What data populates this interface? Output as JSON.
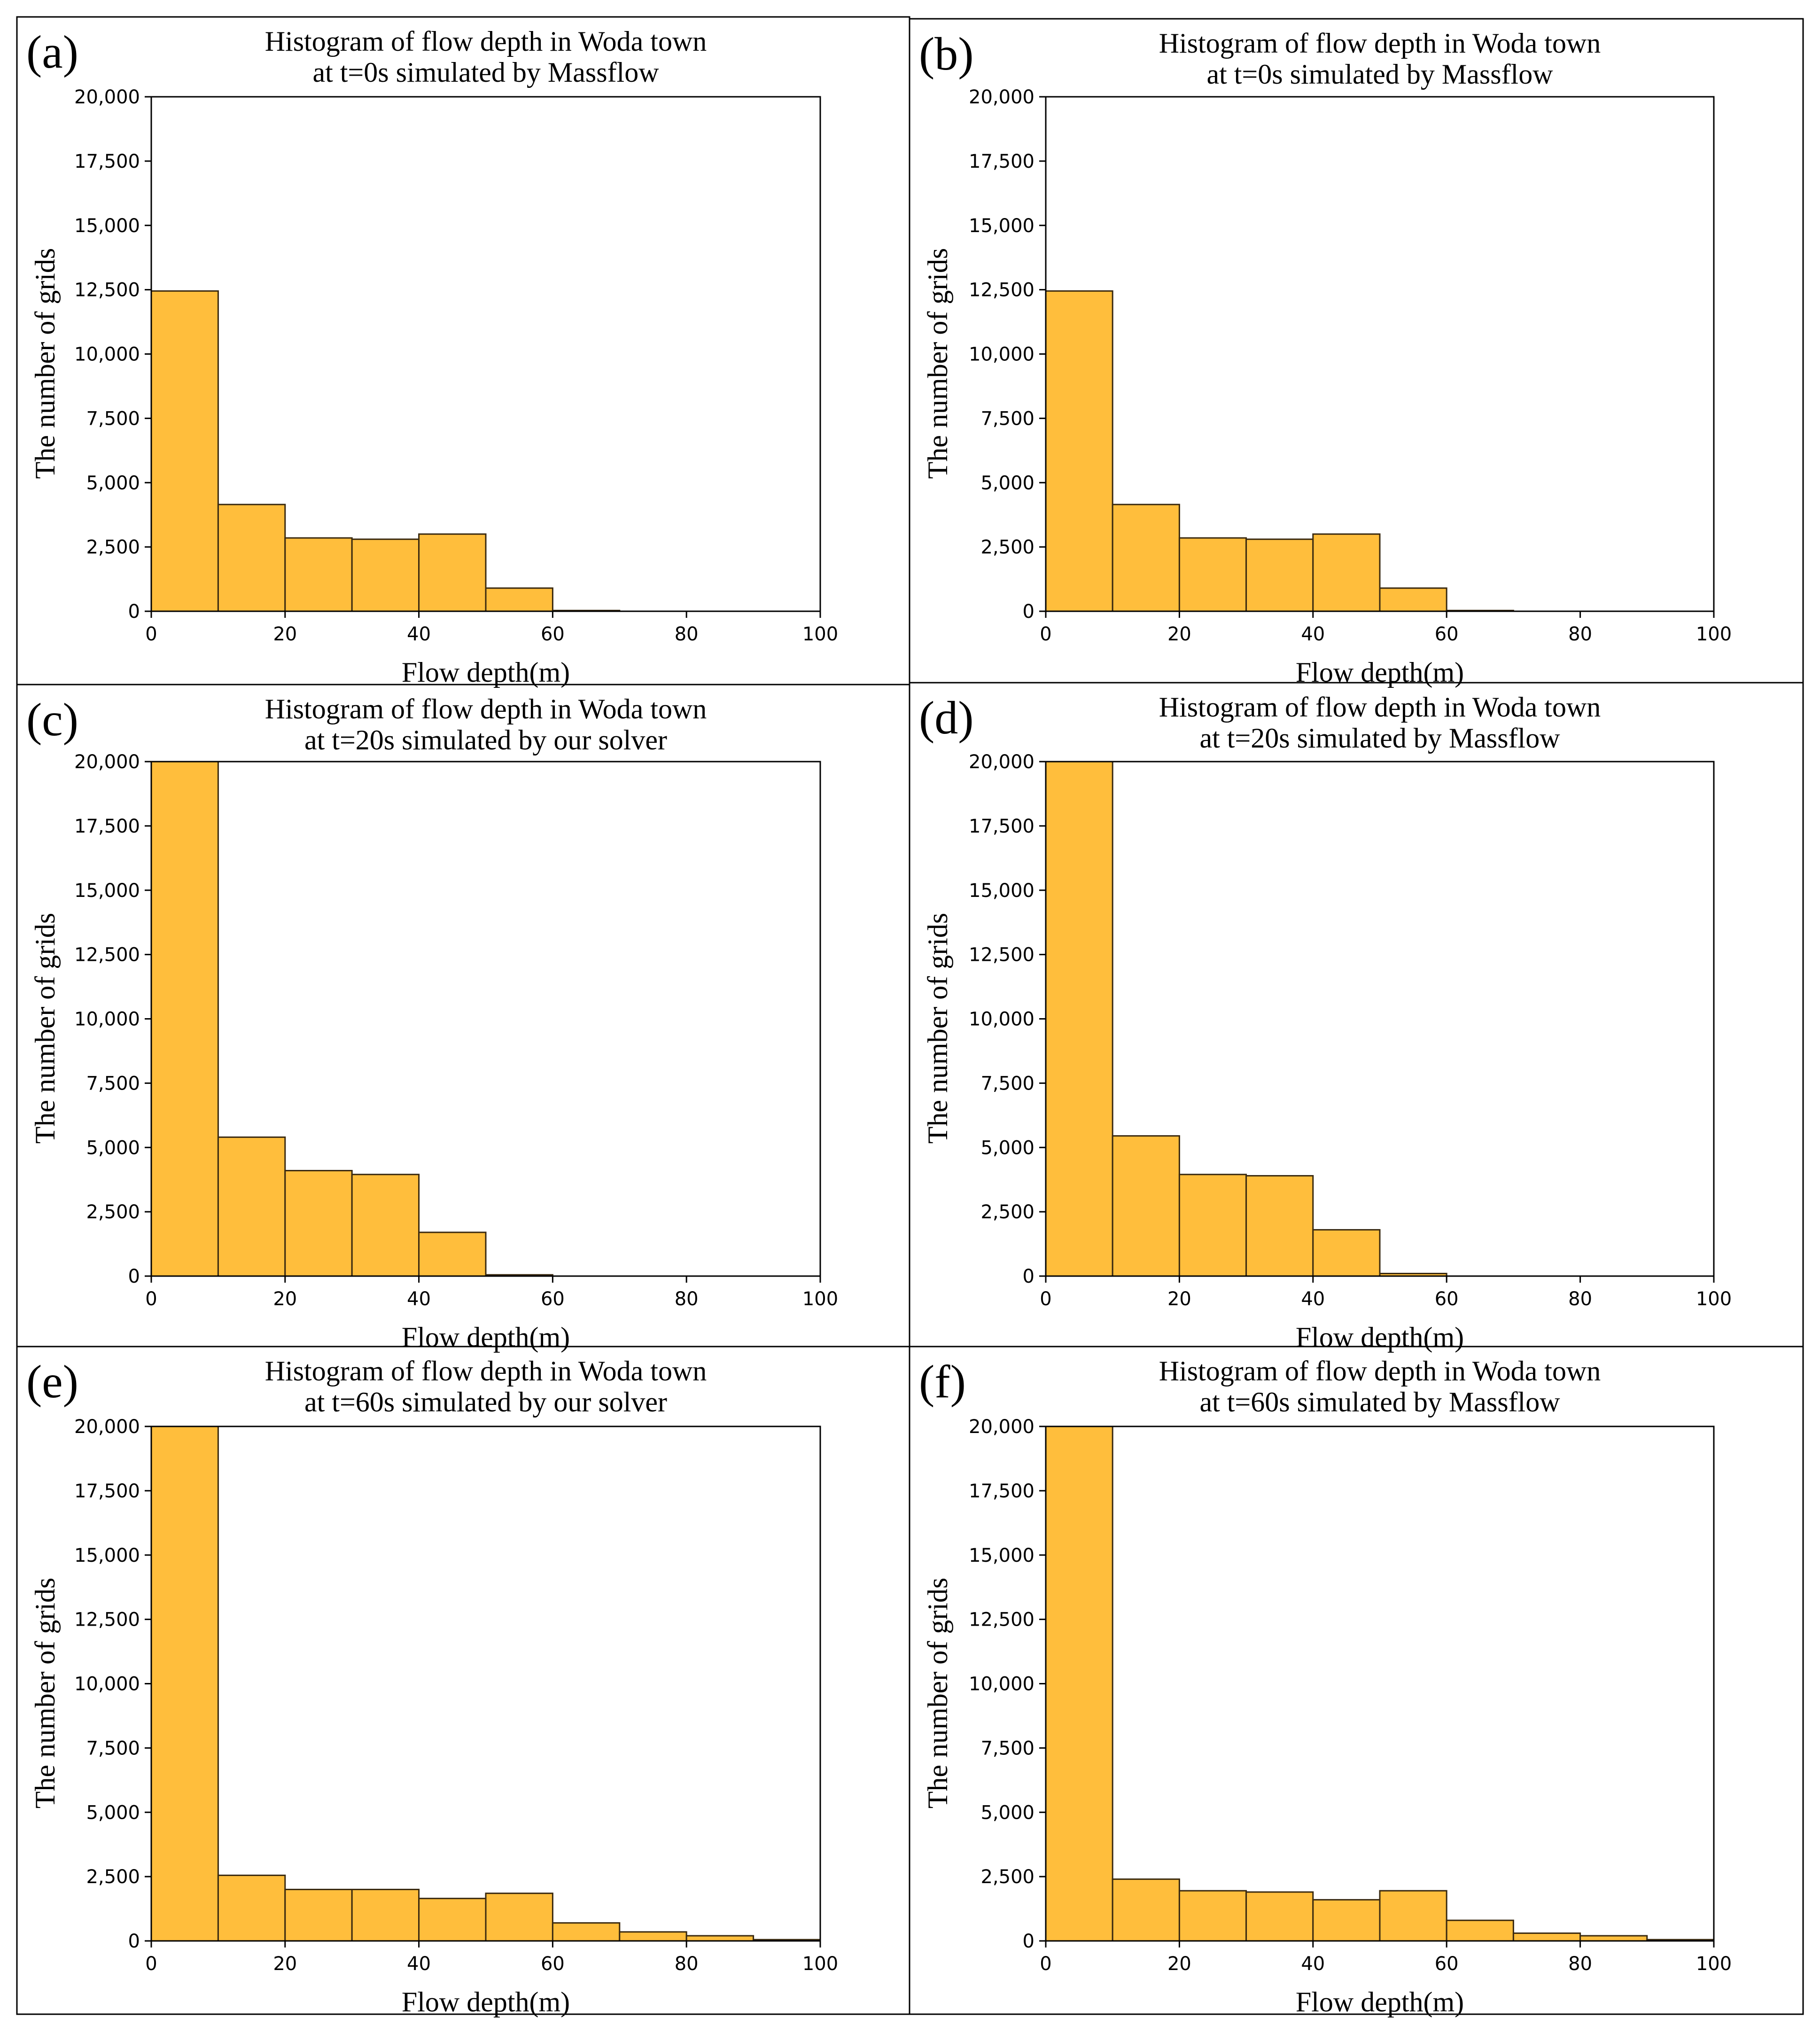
{
  "chart_data": [
    {
      "type": "bar",
      "panel_label": "(a)",
      "title": [
        "Histogram of flow depth in Woda town",
        "at t=0s simulated by Massflow"
      ],
      "xlabel": "Flow depth(m)",
      "ylabel": "The number of grids",
      "bin_edges": [
        0,
        10,
        20,
        30,
        40,
        50,
        60,
        70,
        80,
        90,
        100
      ],
      "values": [
        12450,
        4150,
        2850,
        2800,
        3000,
        900,
        30,
        0,
        0,
        0
      ],
      "xlim": [
        0,
        100
      ],
      "ylim": [
        0,
        20000
      ],
      "xticks": [
        "0",
        "20",
        "40",
        "60",
        "80",
        "100"
      ],
      "yticks": [
        "0",
        "2,500",
        "5,000",
        "7,500",
        "10,000",
        "12,500",
        "15,000",
        "17,500",
        "20,000"
      ],
      "bar_color": "#FFBE3C",
      "edge_color": "#3a2a10",
      "grid": false
    },
    {
      "type": "bar",
      "panel_label": "(b)",
      "title": [
        "Histogram of flow depth in Woda town",
        "at t=0s simulated by Massflow"
      ],
      "xlabel": "Flow depth(m)",
      "ylabel": "The number of grids",
      "bin_edges": [
        0,
        10,
        20,
        30,
        40,
        50,
        60,
        70,
        80,
        90,
        100
      ],
      "values": [
        12450,
        4150,
        2850,
        2800,
        3000,
        900,
        30,
        0,
        0,
        0
      ],
      "xlim": [
        0,
        100
      ],
      "ylim": [
        0,
        20000
      ],
      "xticks": [
        "0",
        "20",
        "40",
        "60",
        "80",
        "100"
      ],
      "yticks": [
        "0",
        "2,500",
        "5,000",
        "7,500",
        "10,000",
        "12,500",
        "15,000",
        "17,500",
        "20,000"
      ],
      "bar_color": "#FFBE3C",
      "edge_color": "#3a2a10",
      "grid": false
    },
    {
      "type": "bar",
      "panel_label": "(c)",
      "title": [
        "Histogram of flow depth in Woda town",
        "at t=20s simulated by our solver"
      ],
      "xlabel": "Flow depth(m)",
      "ylabel": "The number of grids",
      "bin_edges": [
        0,
        10,
        20,
        30,
        40,
        50,
        60,
        70,
        80,
        90,
        100
      ],
      "values": [
        20000,
        5400,
        4100,
        3950,
        1700,
        50,
        0,
        0,
        0,
        0
      ],
      "xlim": [
        0,
        100
      ],
      "ylim": [
        0,
        20000
      ],
      "xticks": [
        "0",
        "20",
        "40",
        "60",
        "80",
        "100"
      ],
      "yticks": [
        "0",
        "2,500",
        "5,000",
        "7,500",
        "10,000",
        "12,500",
        "15,000",
        "17,500",
        "20,000"
      ],
      "bar_color": "#FFBE3C",
      "edge_color": "#3a2a10",
      "grid": false
    },
    {
      "type": "bar",
      "panel_label": "(d)",
      "title": [
        "Histogram of flow depth in Woda town",
        "at t=20s simulated by Massflow"
      ],
      "xlabel": "Flow depth(m)",
      "ylabel": "The number of grids",
      "bin_edges": [
        0,
        10,
        20,
        30,
        40,
        50,
        60,
        70,
        80,
        90,
        100
      ],
      "values": [
        20000,
        5450,
        3950,
        3900,
        1800,
        100,
        0,
        0,
        0,
        0
      ],
      "xlim": [
        0,
        100
      ],
      "ylim": [
        0,
        20000
      ],
      "xticks": [
        "0",
        "20",
        "40",
        "60",
        "80",
        "100"
      ],
      "yticks": [
        "0",
        "2,500",
        "5,000",
        "7,500",
        "10,000",
        "12,500",
        "15,000",
        "17,500",
        "20,000"
      ],
      "bar_color": "#FFBE3C",
      "edge_color": "#3a2a10",
      "grid": false
    },
    {
      "type": "bar",
      "panel_label": "(e)",
      "title": [
        "Histogram of flow depth in Woda town",
        "at t=60s simulated by our solver"
      ],
      "xlabel": "Flow depth(m)",
      "ylabel": "The number of grids",
      "bin_edges": [
        0,
        10,
        20,
        30,
        40,
        50,
        60,
        70,
        80,
        90,
        100
      ],
      "values": [
        20000,
        2550,
        2000,
        2000,
        1650,
        1850,
        700,
        350,
        200,
        50
      ],
      "xlim": [
        0,
        100
      ],
      "ylim": [
        0,
        20000
      ],
      "xticks": [
        "0",
        "20",
        "40",
        "60",
        "80",
        "100"
      ],
      "yticks": [
        "0",
        "2,500",
        "5,000",
        "7,500",
        "10,000",
        "12,500",
        "15,000",
        "17,500",
        "20,000"
      ],
      "bar_color": "#FFBE3C",
      "edge_color": "#3a2a10",
      "grid": false
    },
    {
      "type": "bar",
      "panel_label": "(f)",
      "title": [
        "Histogram of flow depth in Woda town",
        "at t=60s simulated by Massflow"
      ],
      "xlabel": "Flow depth(m)",
      "ylabel": "The number of grids",
      "bin_edges": [
        0,
        10,
        20,
        30,
        40,
        50,
        60,
        70,
        80,
        90,
        100
      ],
      "values": [
        20000,
        2400,
        1950,
        1900,
        1600,
        1950,
        800,
        300,
        200,
        50
      ],
      "xlim": [
        0,
        100
      ],
      "ylim": [
        0,
        20000
      ],
      "xticks": [
        "0",
        "20",
        "40",
        "60",
        "80",
        "100"
      ],
      "yticks": [
        "0",
        "2,500",
        "5,000",
        "7,500",
        "10,000",
        "12,500",
        "15,000",
        "17,500",
        "20,000"
      ],
      "bar_color": "#FFBE3C",
      "edge_color": "#3a2a10",
      "grid": false
    }
  ]
}
